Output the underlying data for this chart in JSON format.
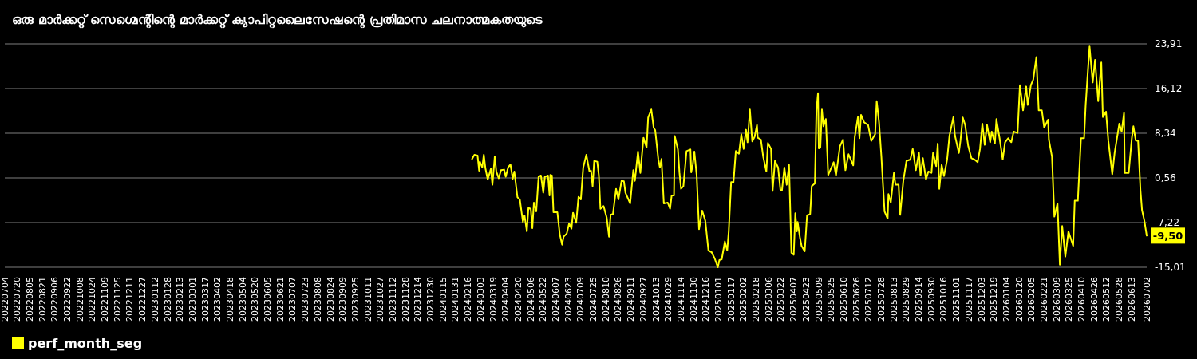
{
  "chart_data": {
    "type": "line",
    "title": "ഒരു മാർക്കറ്റ് സെഗ്മെന്റിന്റെ മാർക്കറ്റ് ക്യാപിറ്റലൈസേഷന്റെ പ്രതിമാസ ചലനാത്മകതയുടെ",
    "x": [
      "2024-02-21",
      "2024-02-24",
      "2024-02-28",
      "2024-03-01",
      "2024-03-02",
      "2024-03-05",
      "2024-03-07",
      "2024-03-09",
      "2024-03-12",
      "2024-03-16",
      "2024-03-18",
      "2024-03-21",
      "2024-03-23",
      "2024-03-26",
      "2024-03-29",
      "2024-04-02",
      "2024-04-04",
      "2024-04-07",
      "2024-04-10",
      "2024-04-13",
      "2024-04-15",
      "2024-04-19",
      "2024-04-22",
      "2024-04-26",
      "2024-04-28",
      "2024-05-01",
      "2024-05-03",
      "2024-05-06",
      "2024-05-08",
      "2024-05-10",
      "2024-05-13",
      "2024-05-16",
      "2024-05-19",
      "2024-05-22",
      "2024-05-24",
      "2024-05-28",
      "2024-05-30",
      "2024-05-31",
      "2024-06-02",
      "2024-06-04",
      "2024-06-09",
      "2024-06-12",
      "2024-06-15",
      "2024-06-17",
      "2024-06-21",
      "2024-06-24",
      "2024-06-27",
      "2024-06-29",
      "2024-07-03",
      "2024-07-06",
      "2024-07-09",
      "2024-07-12",
      "2024-07-16",
      "2024-07-20",
      "2024-07-22",
      "2024-07-24",
      "2024-07-26",
      "2024-07-30",
      "2024-08-01",
      "2024-08-03",
      "2024-08-07",
      "2024-08-11",
      "2024-08-14",
      "2024-08-16",
      "2024-08-19",
      "2024-08-23",
      "2024-08-26",
      "2024-08-30",
      "2024-09-02",
      "2024-09-04",
      "2024-09-10",
      "2024-09-14",
      "2024-09-16",
      "2024-09-20",
      "2024-09-23",
      "2024-09-27",
      "2024-10-01",
      "2024-10-03",
      "2024-10-07",
      "2024-10-10",
      "2024-10-12",
      "2024-10-16",
      "2024-10-18",
      "2024-10-20",
      "2024-10-23",
      "2024-10-28",
      "2024-10-31",
      "2024-11-02",
      "2024-11-05",
      "2024-11-06",
      "2024-11-10",
      "2024-11-12",
      "2024-11-14",
      "2024-11-17",
      "2024-11-21",
      "2024-11-26",
      "2024-11-27",
      "2024-11-29",
      "2024-12-01",
      "2024-12-04",
      "2024-12-07",
      "2024-12-11",
      "2024-12-15",
      "2024-12-19",
      "2024-12-23",
      "2024-12-27",
      "2024-12-31",
      "2025-01-02",
      "2025-01-05",
      "2025-01-09",
      "2025-01-12",
      "2025-01-14",
      "2025-01-17",
      "2025-01-20",
      "2025-01-23",
      "2025-01-27",
      "2025-01-30",
      "2025-02-02",
      "2025-02-05",
      "2025-02-07",
      "2025-02-10",
      "2025-02-13",
      "2025-02-16",
      "2025-02-19",
      "2025-02-20",
      "2025-02-24",
      "2025-02-27",
      "2025-03-03",
      "2025-03-05",
      "2025-03-09",
      "2025-03-11",
      "2025-03-14",
      "2025-03-18",
      "2025-03-21",
      "2025-03-23",
      "2025-03-26",
      "2025-03-29",
      "2025-04-01",
      "2025-04-04",
      "2025-04-07",
      "2025-04-09",
      "2025-04-11",
      "2025-04-12",
      "2025-04-15",
      "2025-04-17",
      "2025-04-21",
      "2025-04-24",
      "2025-04-28",
      "2025-04-30",
      "2025-05-04",
      "2025-05-06",
      "2025-05-08",
      "2025-05-09",
      "2025-05-11",
      "2025-05-13",
      "2025-05-15",
      "2025-05-18",
      "2025-05-21",
      "2025-05-28",
      "2025-05-31",
      "2025-06-05",
      "2025-06-09",
      "2025-06-12",
      "2025-06-16",
      "2025-06-22",
      "2025-06-24",
      "2025-06-28",
      "2025-06-30",
      "2025-07-02",
      "2025-07-06",
      "2025-07-11",
      "2025-07-15",
      "2025-07-20",
      "2025-07-22",
      "2025-07-25",
      "2025-07-28",
      "2025-08-01",
      "2025-08-05",
      "2025-08-06",
      "2025-08-09",
      "2025-08-13",
      "2025-08-15",
      "2025-08-19",
      "2025-08-21",
      "2025-08-25",
      "2025-08-29",
      "2025-09-03",
      "2025-09-06",
      "2025-09-10",
      "2025-09-14",
      "2025-09-16",
      "2025-09-19",
      "2025-09-23",
      "2025-09-26",
      "2025-09-30",
      "2025-10-02",
      "2025-10-06",
      "2025-10-08",
      "2025-10-10",
      "2025-10-13",
      "2025-10-16",
      "2025-10-20",
      "2025-10-23",
      "2025-10-28",
      "2025-10-30",
      "2025-11-04",
      "2025-11-06",
      "2025-11-09",
      "2025-11-12",
      "2025-11-16",
      "2025-11-20",
      "2025-11-24",
      "2025-11-28",
      "2025-12-01",
      "2025-12-04",
      "2025-12-07",
      "2025-12-10",
      "2025-12-14",
      "2025-12-16",
      "2025-12-20",
      "2025-12-22",
      "2025-12-26",
      "2025-12-30",
      "2026-01-02",
      "2026-01-06",
      "2026-01-10",
      "2026-01-13",
      "2026-01-18",
      "2026-01-21",
      "2026-01-25",
      "2026-01-29",
      "2026-01-31",
      "2026-02-04",
      "2026-02-07",
      "2026-02-11",
      "2026-02-14",
      "2026-02-18",
      "2026-02-21",
      "2026-02-26",
      "2026-02-27",
      "2026-03-03",
      "2026-03-06",
      "2026-03-10",
      "2026-03-13",
      "2026-03-16",
      "2026-03-20",
      "2026-03-24",
      "2026-03-30",
      "2026-04-01",
      "2026-04-05",
      "2026-04-09",
      "2026-04-13",
      "2026-04-15",
      "2026-04-17",
      "2026-04-20",
      "2026-04-24",
      "2026-04-27",
      "2026-05-01",
      "2026-05-05",
      "2026-05-07",
      "2026-05-11",
      "2026-05-14",
      "2026-05-19",
      "2026-05-22",
      "2026-05-28",
      "2026-05-31",
      "2026-06-03",
      "2026-06-04",
      "2026-06-09",
      "2026-06-13",
      "2026-06-15",
      "2026-06-18",
      "2026-06-21",
      "2026-06-24",
      "2026-06-26",
      "2026-06-29",
      "2026-07-02"
    ],
    "series": [
      {
        "name": "perf_month_seg",
        "color": "#ffff00",
        "values": [
          3.85,
          4.59,
          4.45,
          1.81,
          3.39,
          2.37,
          4.59,
          2.27,
          0.28,
          2.14,
          -0.64,
          4.31,
          1.67,
          0.51,
          1.9,
          2.0,
          0.75,
          2.37,
          2.92,
          0.42,
          1.67,
          -2.82,
          -3.19,
          -7.13,
          -5.97,
          -8.75,
          -4.68,
          -4.82,
          -8.2,
          -3.75,
          -5.28,
          0.75,
          0.98,
          -2.03,
          0.75,
          0.98,
          -2.5,
          1.07,
          0.98,
          -5.42,
          -5.42,
          -9.22,
          -11.07,
          -9.68,
          -9.12,
          -7.36,
          -8.29,
          -5.51,
          -7.27,
          -2.73,
          -3.19,
          2.37,
          4.59,
          1.67,
          1.81,
          -0.88,
          3.52,
          3.39,
          0.98,
          -4.82,
          -4.35,
          -6.34,
          -9.68,
          -5.88,
          -5.74,
          -1.34,
          -3.19,
          0.05,
          -0.04,
          -2.03,
          -3.89,
          1.9,
          0.05,
          5.15,
          1.44,
          7.56,
          5.84,
          11.08,
          12.47,
          9.32,
          8.85,
          3.76,
          2.37,
          3.85,
          -3.89,
          -3.75,
          -4.82,
          -2.5,
          -2.5,
          7.84,
          5.52,
          1.44,
          -1.34,
          -0.88,
          5.24,
          5.52,
          1.53,
          2.83,
          5.15,
          0.98,
          -8.38,
          -5.14,
          -6.9,
          -12.09,
          -12.37,
          -13.48,
          -15.01,
          -13.76,
          -13.62,
          -10.51,
          -12.09,
          -8.66,
          -0.18,
          -0.18,
          5.24,
          4.78,
          8.16,
          5.61,
          8.95,
          6.77,
          12.47,
          6.91,
          7.7,
          9.78,
          7.56,
          7.23,
          4.22,
          1.67,
          6.63,
          5.61,
          -1.71,
          3.52,
          2.37,
          -1.57,
          -1.57,
          2.37,
          -0.64,
          2.83,
          -12.46,
          -12.83,
          -5.6,
          -8.75,
          -7.13,
          -9.91,
          -11.3,
          -12.23,
          -5.97,
          -5.74,
          -0.88,
          -0.41,
          12.33,
          15.34,
          5.7,
          5.84,
          12.47,
          9.55,
          10.8,
          1.07,
          3.29,
          0.98,
          6.07,
          7.23,
          1.9,
          4.68,
          2.74,
          7.7,
          11.17,
          7.47,
          11.54,
          10.24,
          9.78,
          7.0,
          8.16,
          13.95,
          10.24,
          4.22,
          -5.28,
          -6.53,
          -2.27,
          -3.75,
          1.44,
          -0.64,
          -0.64,
          -5.88,
          0.05,
          3.52,
          3.76,
          5.61,
          1.9,
          4.91,
          0.98,
          3.99,
          0.28,
          1.67,
          1.44,
          4.91,
          2.6,
          6.54,
          -1.34,
          2.83,
          0.88,
          3.76,
          7.93,
          11.17,
          7.93,
          4.91,
          7.0,
          11.08,
          9.78,
          6.07,
          3.99,
          3.76,
          3.29,
          5.61,
          10.01,
          6.31,
          9.78,
          6.77,
          8.62,
          6.54,
          10.8,
          7.47,
          3.76,
          6.77,
          7.47,
          6.77,
          8.62,
          8.39,
          16.73,
          12.33,
          16.49,
          13.26,
          16.73,
          17.66,
          21.6,
          12.33,
          12.33,
          9.32,
          10.71,
          7.23,
          4.22,
          -6.2,
          -3.89,
          -14.55,
          -7.83,
          -13.16,
          -8.75,
          -11.3,
          -3.42,
          -3.42,
          7.47,
          7.47,
          13.26,
          17.43,
          23.45,
          17.19,
          21.13,
          13.95,
          20.67,
          11.17,
          12.1,
          7.0,
          1.21,
          4.91,
          10.01,
          8.62,
          11.87,
          1.44,
          1.44,
          7.47,
          9.55,
          7.09,
          7.0,
          -1.57,
          -5.05,
          -6.9,
          -9.5
        ]
      }
    ],
    "xlim": [
      "2022-07-04",
      "2026-07-02"
    ],
    "xticks": [
      {
        "value": "2022-07-04",
        "label": "20220704"
      },
      {
        "value": "2022-07-20",
        "label": "20220720"
      },
      {
        "value": "2022-08-05",
        "label": "20220805"
      },
      {
        "value": "2022-08-21",
        "label": "20220821"
      },
      {
        "value": "2022-09-06",
        "label": "20220906"
      },
      {
        "value": "2022-09-22",
        "label": "20220922"
      },
      {
        "value": "2022-10-08",
        "label": "20221008"
      },
      {
        "value": "2022-10-24",
        "label": "20221024"
      },
      {
        "value": "2022-11-09",
        "label": "20221109"
      },
      {
        "value": "2022-11-25",
        "label": "20221125"
      },
      {
        "value": "2022-12-11",
        "label": "20221211"
      },
      {
        "value": "2022-12-27",
        "label": "20221227"
      },
      {
        "value": "2023-01-12",
        "label": "20230112"
      },
      {
        "value": "2023-01-28",
        "label": "20230128"
      },
      {
        "value": "2023-02-13",
        "label": "20230213"
      },
      {
        "value": "2023-03-01",
        "label": "20230301"
      },
      {
        "value": "2023-03-17",
        "label": "20230317"
      },
      {
        "value": "2023-04-02",
        "label": "20230402"
      },
      {
        "value": "2023-04-18",
        "label": "20230418"
      },
      {
        "value": "2023-05-04",
        "label": "20230504"
      },
      {
        "value": "2023-05-20",
        "label": "20230520"
      },
      {
        "value": "2023-06-05",
        "label": "20230605"
      },
      {
        "value": "2023-06-21",
        "label": "20230621"
      },
      {
        "value": "2023-07-07",
        "label": "20230707"
      },
      {
        "value": "2023-07-23",
        "label": "20230723"
      },
      {
        "value": "2023-08-08",
        "label": "20230808"
      },
      {
        "value": "2023-08-24",
        "label": "20230824"
      },
      {
        "value": "2023-09-09",
        "label": "20230909"
      },
      {
        "value": "2023-09-25",
        "label": "20230925"
      },
      {
        "value": "2023-10-11",
        "label": "20231011"
      },
      {
        "value": "2023-10-27",
        "label": "20231027"
      },
      {
        "value": "2023-11-12",
        "label": "20231112"
      },
      {
        "value": "2023-11-28",
        "label": "20231128"
      },
      {
        "value": "2023-12-14",
        "label": "20231214"
      },
      {
        "value": "2023-12-30",
        "label": "20231230"
      },
      {
        "value": "2024-01-15",
        "label": "20240115"
      },
      {
        "value": "2024-01-31",
        "label": "20240131"
      },
      {
        "value": "2024-02-16",
        "label": "20240216"
      },
      {
        "value": "2024-03-03",
        "label": "20240303"
      },
      {
        "value": "2024-03-19",
        "label": "20240319"
      },
      {
        "value": "2024-04-04",
        "label": "20240404"
      },
      {
        "value": "2024-04-20",
        "label": "20240420"
      },
      {
        "value": "2024-05-06",
        "label": "20240506"
      },
      {
        "value": "2024-05-22",
        "label": "20240522"
      },
      {
        "value": "2024-06-07",
        "label": "20240607"
      },
      {
        "value": "2024-06-23",
        "label": "20240623"
      },
      {
        "value": "2024-07-09",
        "label": "20240709"
      },
      {
        "value": "2024-07-25",
        "label": "20240725"
      },
      {
        "value": "2024-08-10",
        "label": "20240810"
      },
      {
        "value": "2024-08-26",
        "label": "20240826"
      },
      {
        "value": "2024-09-11",
        "label": "20240911"
      },
      {
        "value": "2024-09-27",
        "label": "20240927"
      },
      {
        "value": "2024-10-13",
        "label": "20241013"
      },
      {
        "value": "2024-10-29",
        "label": "20241029"
      },
      {
        "value": "2024-11-14",
        "label": "20241114"
      },
      {
        "value": "2024-11-30",
        "label": "20241130"
      },
      {
        "value": "2024-12-16",
        "label": "20241216"
      },
      {
        "value": "2025-01-01",
        "label": "20250101"
      },
      {
        "value": "2025-01-17",
        "label": "20250117"
      },
      {
        "value": "2025-02-02",
        "label": "20250202"
      },
      {
        "value": "2025-02-18",
        "label": "20250218"
      },
      {
        "value": "2025-03-06",
        "label": "20250306"
      },
      {
        "value": "2025-03-22",
        "label": "20250322"
      },
      {
        "value": "2025-04-07",
        "label": "20250407"
      },
      {
        "value": "2025-04-23",
        "label": "20250423"
      },
      {
        "value": "2025-05-09",
        "label": "20250509"
      },
      {
        "value": "2025-05-25",
        "label": "20250525"
      },
      {
        "value": "2025-06-10",
        "label": "20250610"
      },
      {
        "value": "2025-06-26",
        "label": "20250626"
      },
      {
        "value": "2025-07-12",
        "label": "20250712"
      },
      {
        "value": "2025-07-28",
        "label": "20250728"
      },
      {
        "value": "2025-08-13",
        "label": "20250813"
      },
      {
        "value": "2025-08-29",
        "label": "20250829"
      },
      {
        "value": "2025-09-14",
        "label": "20250914"
      },
      {
        "value": "2025-09-30",
        "label": "20250930"
      },
      {
        "value": "2025-10-16",
        "label": "20251016"
      },
      {
        "value": "2025-11-01",
        "label": "20251101"
      },
      {
        "value": "2025-11-17",
        "label": "20251117"
      },
      {
        "value": "2025-12-03",
        "label": "20251203"
      },
      {
        "value": "2025-12-19",
        "label": "20251219"
      },
      {
        "value": "2026-01-04",
        "label": "20260104"
      },
      {
        "value": "2026-01-20",
        "label": "20260120"
      },
      {
        "value": "2026-02-05",
        "label": "20260205"
      },
      {
        "value": "2026-02-21",
        "label": "20260221"
      },
      {
        "value": "2026-03-09",
        "label": "20260309"
      },
      {
        "value": "2026-03-25",
        "label": "20260325"
      },
      {
        "value": "2026-04-10",
        "label": "20260410"
      },
      {
        "value": "2026-04-26",
        "label": "20260426"
      },
      {
        "value": "2026-05-12",
        "label": "20260512"
      },
      {
        "value": "2026-05-28",
        "label": "20260528"
      },
      {
        "value": "2026-06-13",
        "label": "20260613"
      },
      {
        "value": "2026-07-02",
        "label": "20260702"
      }
    ],
    "ylim": [
      -15.01,
      23.91
    ],
    "yticks": [
      {
        "value": 23.91,
        "label": "23,91"
      },
      {
        "value": 16.12,
        "label": "16,12"
      },
      {
        "value": 8.34,
        "label": "8,34"
      },
      {
        "value": 0.56,
        "label": "0,56"
      },
      {
        "value": -7.22,
        "label": "-7,22"
      },
      {
        "value": -15.01,
        "label": "-15,01"
      }
    ],
    "grid": "y",
    "legend": "bottom",
    "annotations": [
      {
        "text": "-9,50",
        "x": "2026-07-02",
        "y": -9.5
      }
    ]
  }
}
